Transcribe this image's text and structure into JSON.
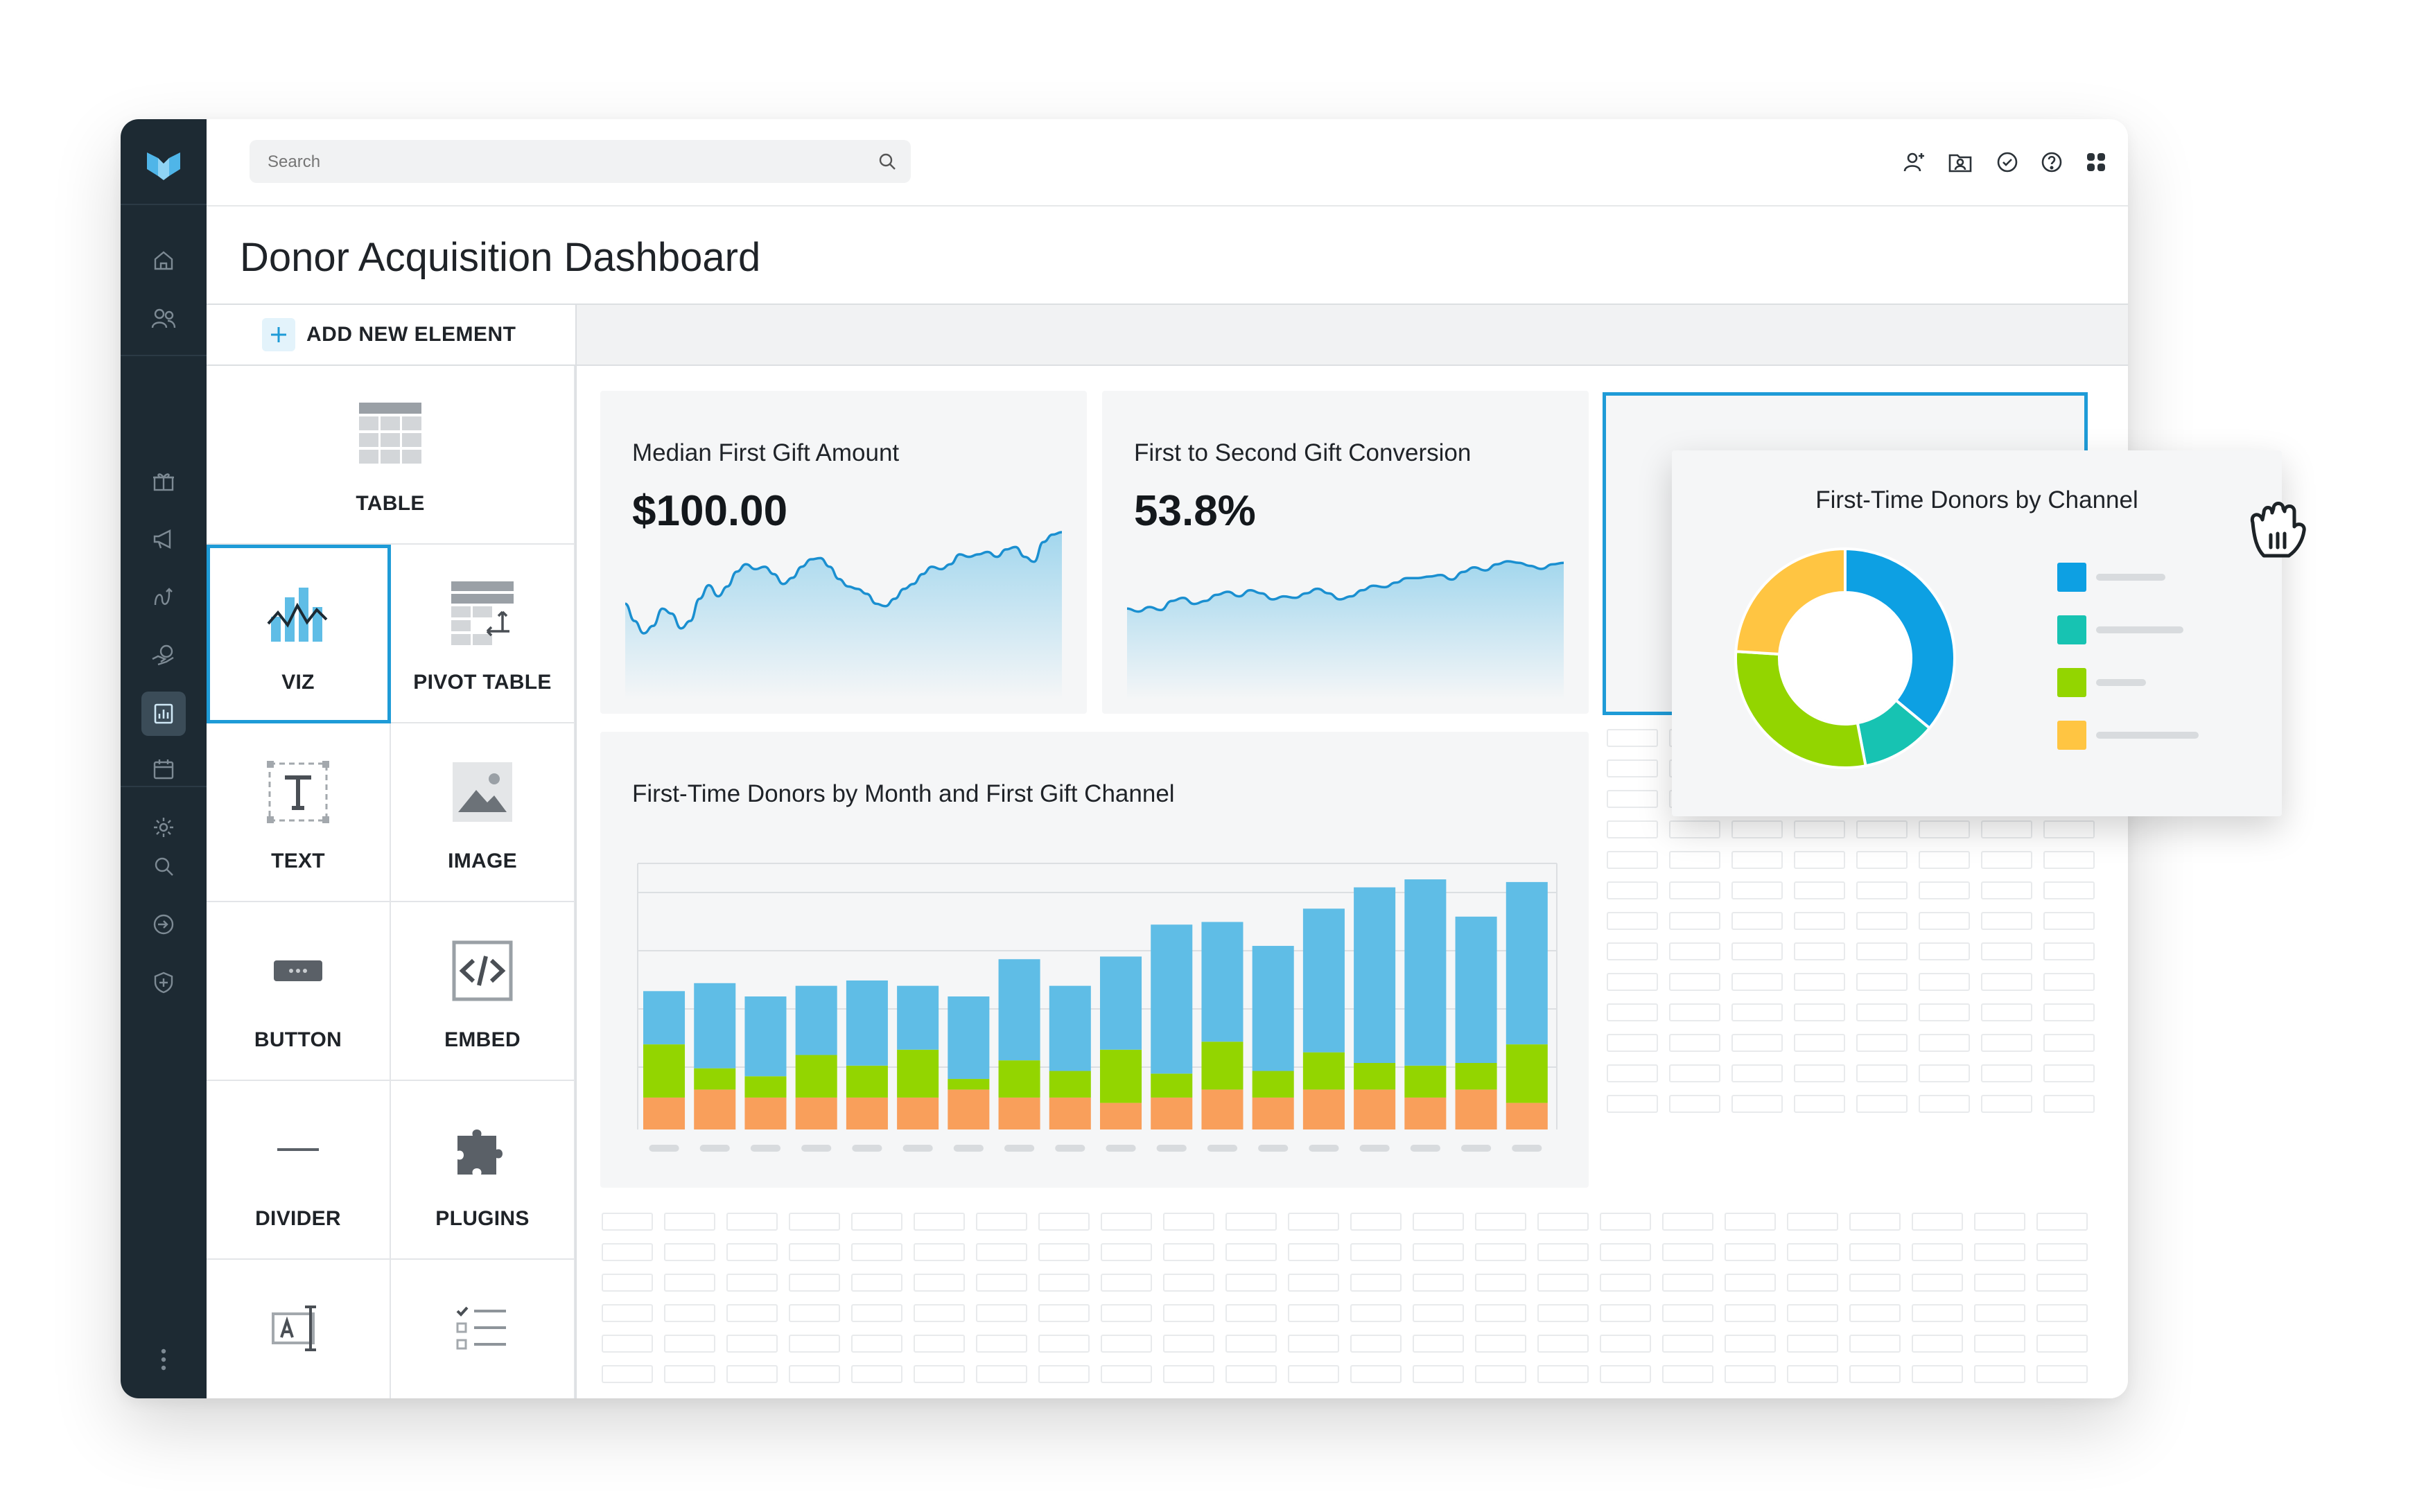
{
  "search": {
    "placeholder": "Search"
  },
  "page": {
    "title": "Donor Acquisition Dashboard"
  },
  "palette": {
    "add_label": "ADD NEW ELEMENT",
    "tiles": [
      {
        "label": "TABLE",
        "icon": "table-icon"
      },
      {
        "label": "VIZ",
        "icon": "viz-icon"
      },
      {
        "label": "PIVOT TABLE",
        "icon": "pivot-table-icon"
      },
      {
        "label": "TEXT",
        "icon": "text-icon"
      },
      {
        "label": "IMAGE",
        "icon": "image-icon"
      },
      {
        "label": "BUTTON",
        "icon": "button-icon"
      },
      {
        "label": "EMBED",
        "icon": "embed-icon"
      },
      {
        "label": "DIVIDER",
        "icon": "divider-icon"
      },
      {
        "label": "PLUGINS",
        "icon": "plugins-icon"
      }
    ]
  },
  "cards": {
    "median_gift": {
      "title": "Median First Gift Amount",
      "value": "$100.00"
    },
    "conversion": {
      "title": "First to Second Gift Conversion",
      "value": "53.8%"
    },
    "monthly": {
      "title": "First-Time Donors by Month and First Gift Channel"
    },
    "channel": {
      "title": "First-Time Donors by Channel"
    }
  },
  "colors": {
    "accent": "#1e9bd7",
    "rail": "#1d2a33",
    "blue": "#5fbde6",
    "green": "#93d500",
    "orange": "#f99f5b",
    "teal": "#17c3b2",
    "yellow": "#ffc542",
    "donut_blue": "#0da0e3"
  },
  "chart_data": [
    {
      "type": "area",
      "series": [
        {
          "values": [
            0.58,
            0.72,
            0.82,
            0.76,
            0.62,
            0.66,
            0.78,
            0.72,
            0.54,
            0.43,
            0.52,
            0.44,
            0.32,
            0.26,
            0.3,
            0.28,
            0.34,
            0.42,
            0.37,
            0.28,
            0.22,
            0.21,
            0.28,
            0.38,
            0.44,
            0.46,
            0.5,
            0.58,
            0.6,
            0.54,
            0.46,
            0.42,
            0.34,
            0.28,
            0.3,
            0.26,
            0.18,
            0.2,
            0.18,
            0.16,
            0.2,
            0.14,
            0.12,
            0.2,
            0.24,
            0.08,
            0.02,
            0.0
          ]
        }
      ]
    },
    {
      "type": "area",
      "series": [
        {
          "values": [
            0.62,
            0.66,
            0.6,
            0.64,
            0.52,
            0.48,
            0.56,
            0.52,
            0.44,
            0.4,
            0.46,
            0.38,
            0.42,
            0.5,
            0.46,
            0.48,
            0.42,
            0.36,
            0.42,
            0.5,
            0.46,
            0.38,
            0.32,
            0.34,
            0.28,
            0.22,
            0.22,
            0.2,
            0.18,
            0.24,
            0.14,
            0.08,
            0.12,
            0.04,
            0.0,
            0.02,
            0.06,
            0.1,
            0.04,
            0.02
          ]
        }
      ]
    },
    {
      "type": "bar",
      "series": [
        {
          "name": "orange",
          "values": [
            0.12,
            0.15,
            0.12,
            0.12,
            0.12,
            0.12,
            0.15,
            0.12,
            0.12,
            0.1,
            0.12,
            0.15,
            0.12,
            0.15,
            0.15,
            0.12,
            0.15,
            0.1
          ]
        },
        {
          "name": "green",
          "values": [
            0.2,
            0.08,
            0.08,
            0.16,
            0.12,
            0.18,
            0.04,
            0.14,
            0.1,
            0.2,
            0.09,
            0.18,
            0.1,
            0.14,
            0.1,
            0.12,
            0.1,
            0.22
          ]
        },
        {
          "name": "blue",
          "values": [
            0.2,
            0.32,
            0.3,
            0.26,
            0.32,
            0.24,
            0.31,
            0.38,
            0.32,
            0.35,
            0.56,
            0.45,
            0.47,
            0.54,
            0.66,
            0.7,
            0.55,
            0.61
          ]
        }
      ]
    },
    {
      "type": "pie",
      "series": [
        {
          "values": [
            0.36,
            0.11,
            0.29,
            0.24
          ]
        }
      ]
    }
  ]
}
